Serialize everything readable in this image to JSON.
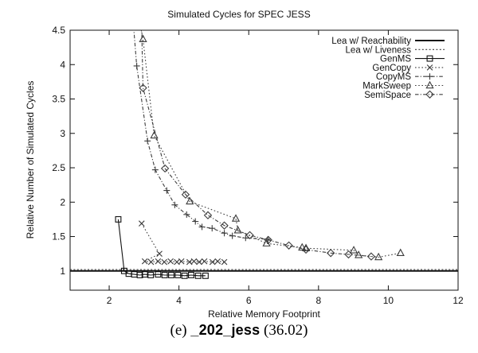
{
  "title": "Simulated Cycles for SPEC JESS",
  "caption": {
    "prefix": "(e)",
    "benchmark": "_202_jess",
    "suffix": "(36.02)"
  },
  "colors": {
    "foreground": "#111111",
    "muted_line": "#3d3d3d",
    "background": "#ffffff"
  },
  "chart_data": {
    "type": "line",
    "title": "Simulated Cycles for SPEC JESS",
    "xlabel": "Relative Memory Footprint",
    "ylabel": "Relative Number of Simulated Cycles",
    "xlim": [
      0.88,
      12
    ],
    "ylim": [
      0.72,
      4.5
    ],
    "xticks": [
      2,
      4,
      6,
      8,
      10,
      12
    ],
    "yticks": [
      1,
      1.5,
      2,
      2.5,
      3,
      3.5,
      4,
      4.5
    ],
    "grid": false,
    "legend_position": "top-right-inside",
    "series": [
      {
        "name": "Lea w/ Reachability",
        "style": "solid",
        "marker": "none",
        "points": [
          [
            0.88,
            1.0
          ],
          [
            12,
            1.0
          ]
        ]
      },
      {
        "name": "Lea w/ Liveness",
        "style": "finedash",
        "marker": "none",
        "points": [
          [
            0.88,
            1.02
          ],
          [
            12,
            1.02
          ]
        ]
      },
      {
        "name": "GenMS",
        "style": "solid",
        "marker": "square",
        "points": [
          [
            2.26,
            1.75
          ],
          [
            2.43,
            1.0
          ],
          [
            2.56,
            0.96
          ],
          [
            2.72,
            0.95
          ],
          [
            2.88,
            0.94
          ],
          [
            3.02,
            0.95
          ],
          [
            3.19,
            0.94
          ],
          [
            3.4,
            0.95
          ],
          [
            3.59,
            0.94
          ],
          [
            3.78,
            0.94
          ],
          [
            3.97,
            0.94
          ],
          [
            4.16,
            0.93
          ],
          [
            4.35,
            0.94
          ],
          [
            4.55,
            0.93
          ],
          [
            4.76,
            0.93
          ]
        ]
      },
      {
        "name": "GenCopy",
        "style": "dotted",
        "marker": "x",
        "points": [
          [
            2.93,
            1.69
          ],
          [
            3.44,
            1.25
          ],
          [
            3.02,
            1.14
          ],
          [
            3.2,
            1.13
          ],
          [
            3.4,
            1.14
          ],
          [
            3.58,
            1.13
          ],
          [
            3.76,
            1.14
          ],
          [
            3.94,
            1.13
          ],
          [
            4.07,
            1.14
          ],
          [
            4.3,
            1.13
          ],
          [
            4.43,
            1.14
          ],
          [
            4.58,
            1.13
          ],
          [
            4.73,
            1.14
          ],
          [
            4.96,
            1.13
          ],
          [
            5.11,
            1.14
          ],
          [
            5.3,
            1.13
          ]
        ]
      },
      {
        "name": "CopyMS",
        "style": "dashdot",
        "marker": "plus",
        "points": [
          [
            2.7,
            4.55
          ],
          [
            2.79,
            3.98
          ],
          [
            3.1,
            2.89
          ],
          [
            3.32,
            2.47
          ],
          [
            3.65,
            2.17
          ],
          [
            3.88,
            1.96
          ],
          [
            4.22,
            1.82
          ],
          [
            4.47,
            1.72
          ],
          [
            4.66,
            1.64
          ],
          [
            4.95,
            1.62
          ],
          [
            5.3,
            1.55
          ],
          [
            5.53,
            1.51
          ],
          [
            5.91,
            1.48
          ],
          [
            6.55,
            1.46
          ]
        ]
      },
      {
        "name": "MarkSweep",
        "style": "dotted",
        "marker": "triangle",
        "points": [
          [
            2.9,
            4.55
          ],
          [
            2.97,
            4.37
          ],
          [
            3.29,
            2.97
          ],
          [
            4.31,
            2.01
          ],
          [
            5.63,
            1.76
          ],
          [
            5.69,
            1.59
          ],
          [
            6.51,
            1.4
          ],
          [
            7.53,
            1.34
          ],
          [
            7.64,
            1.33
          ],
          [
            9.01,
            1.3
          ],
          [
            9.15,
            1.23
          ],
          [
            9.72,
            1.2
          ],
          [
            10.35,
            1.26
          ]
        ]
      },
      {
        "name": "SemiSpace",
        "style": "dashdot",
        "marker": "diamond",
        "points": [
          [
            2.93,
            4.55
          ],
          [
            2.97,
            3.66
          ],
          [
            3.6,
            2.49
          ],
          [
            4.19,
            2.11
          ],
          [
            4.83,
            1.81
          ],
          [
            5.3,
            1.66
          ],
          [
            6.03,
            1.52
          ],
          [
            6.56,
            1.45
          ],
          [
            7.15,
            1.37
          ],
          [
            7.64,
            1.31
          ],
          [
            8.35,
            1.26
          ],
          [
            8.86,
            1.24
          ],
          [
            9.51,
            1.21
          ]
        ]
      }
    ]
  }
}
